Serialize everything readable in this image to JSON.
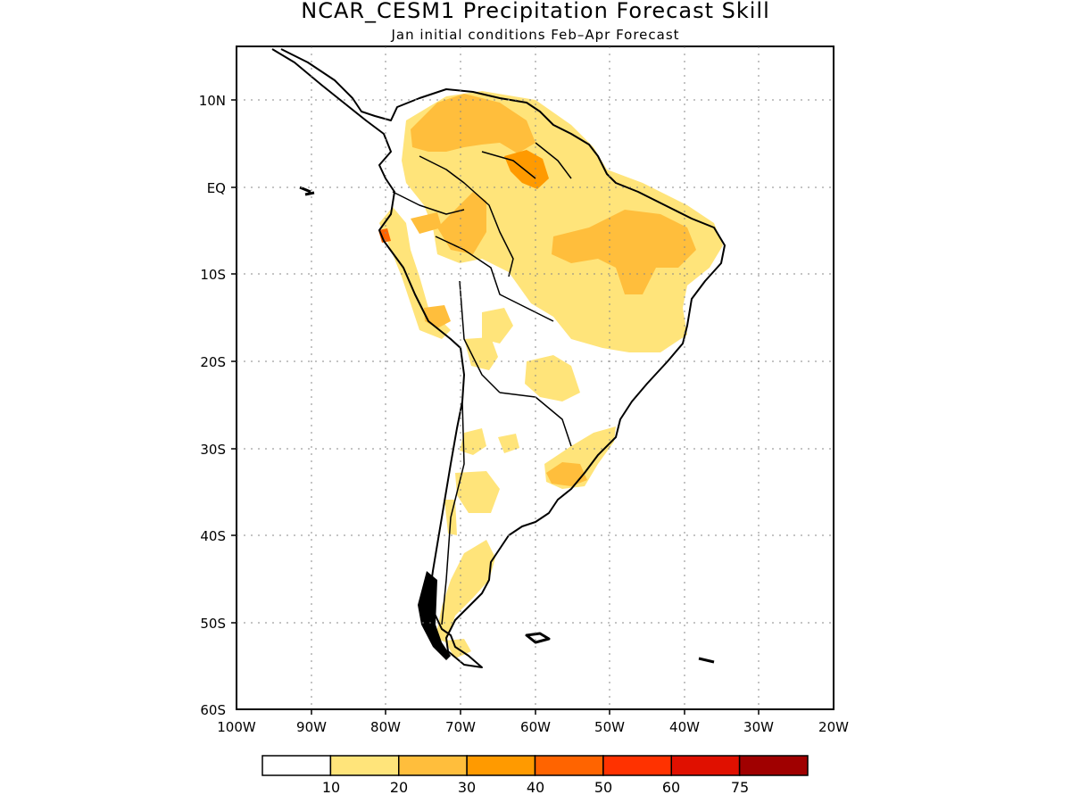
{
  "title": "NCAR_CESM1 Precipitation Forecast Skill",
  "subtitle": "Jan initial conditions  Feb–Apr Forecast",
  "map": {
    "region": "South America",
    "projection": "lat-lon",
    "lon_range": [
      -100,
      -20
    ],
    "lat_range": [
      -60,
      15
    ],
    "grid": "dotted",
    "lon_ticks": [
      "100W",
      "90W",
      "80W",
      "70W",
      "60W",
      "50W",
      "40W",
      "30W",
      "20W"
    ],
    "lat_ticks": [
      "10N",
      "EQ",
      "10S",
      "20S",
      "30S",
      "40S",
      "50S",
      "60S"
    ]
  },
  "colorbar": {
    "labels": [
      "10",
      "20",
      "30",
      "40",
      "50",
      "60",
      "75"
    ],
    "colors": [
      "#ffffff",
      "#ffe47a",
      "#ffbe3c",
      "#ff9a00",
      "#ff6400",
      "#ff3200",
      "#e01000",
      "#a00000"
    ]
  },
  "skill_regions": [
    {
      "level": 1,
      "desc": "northern Colombia/Venezuela"
    },
    {
      "level": 1,
      "desc": "Amazon basin"
    },
    {
      "level": 1,
      "desc": "northeast Brazil"
    },
    {
      "level": 1,
      "desc": "southern Brazil/Uruguay"
    },
    {
      "level": 1,
      "desc": "Patagonia"
    },
    {
      "level": 2,
      "desc": "Venezuela/Guyana"
    },
    {
      "level": 2,
      "desc": "northeast Brazil coast"
    },
    {
      "level": 3,
      "desc": "Guyana highlands"
    },
    {
      "level": 4,
      "desc": "northern Peru coast"
    }
  ]
}
